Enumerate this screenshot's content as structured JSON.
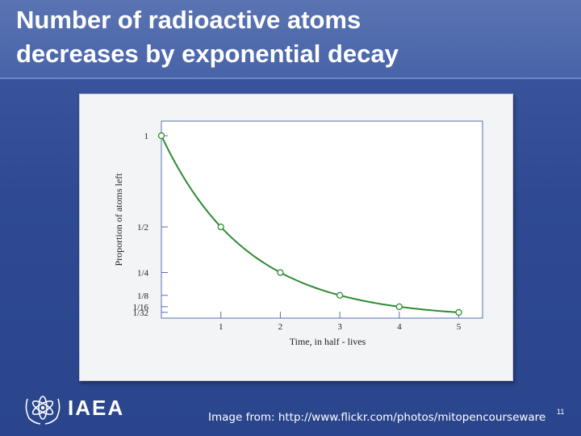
{
  "slide": {
    "title_line1": "Number of radioactive atoms",
    "title_line2": "decreases by exponential decay",
    "source": "Image from: http://www.flickr.com/photos/mitopencourseware",
    "page_number": "11",
    "logo_text": "IAEA"
  },
  "colors": {
    "curve": "#2e8b35",
    "axis": "#5a6fb0",
    "marker_fill": "#ffffff"
  },
  "chart_data": {
    "type": "line",
    "xlabel": "Time, in half - lives",
    "ylabel": "Proportion of atoms left",
    "x": [
      0,
      1,
      2,
      3,
      4,
      5
    ],
    "values": [
      1,
      0.5,
      0.25,
      0.125,
      0.0625,
      0.03125
    ],
    "xlim": [
      0,
      5.4
    ],
    "ylim": [
      0,
      1.08
    ],
    "x_ticks": [
      {
        "value": 1,
        "label": "1"
      },
      {
        "value": 2,
        "label": "2"
      },
      {
        "value": 3,
        "label": "3"
      },
      {
        "value": 4,
        "label": "4"
      },
      {
        "value": 5,
        "label": "5"
      }
    ],
    "y_ticks": [
      {
        "value": 1,
        "label": "1"
      },
      {
        "value": 0.5,
        "label": "1/2"
      },
      {
        "value": 0.25,
        "label": "1/4"
      },
      {
        "value": 0.125,
        "label": "1/8"
      },
      {
        "value": 0.0625,
        "label": "1/16"
      },
      {
        "value": 0.03125,
        "label": "1/32"
      }
    ],
    "grid": false
  }
}
